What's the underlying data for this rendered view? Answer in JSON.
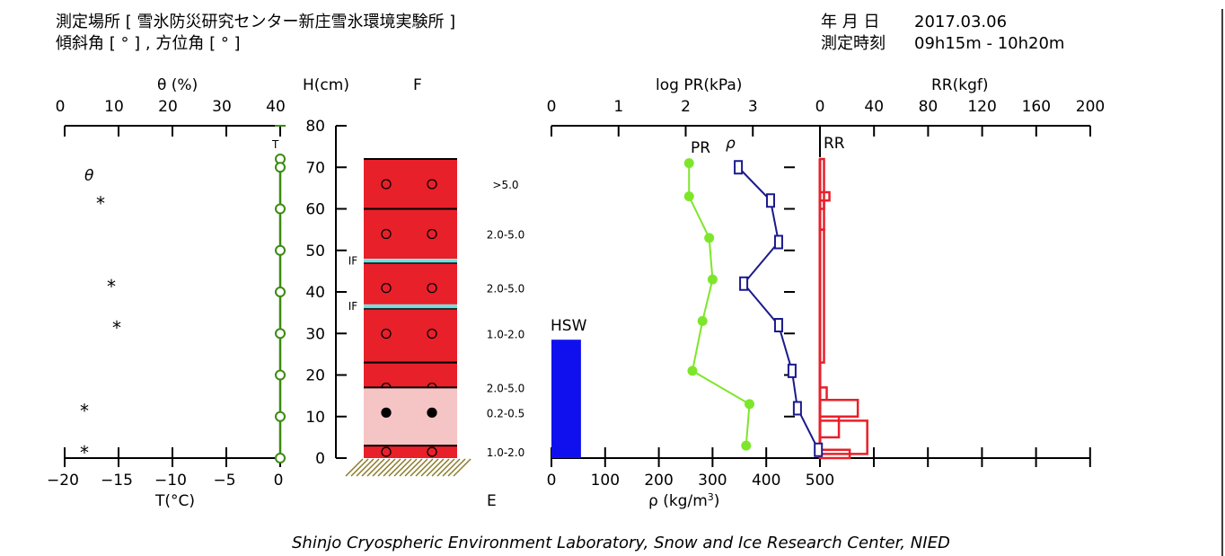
{
  "header": {
    "site_label": "測定場所 [ 雪氷防災研究センター新庄雪氷環境実験所 ]",
    "angle_label": "傾斜角 [ ° ] , 方位角 [ ° ]",
    "date_label": "年 月 日",
    "date_value": "2017.03.06",
    "time_label": "測定時刻",
    "time_value": "09h15m - 10h20m"
  },
  "footer": "Shinjo Cryospheric Environment Laboratory, Snow and Ice Research Center, NIED",
  "chart_data": {
    "type": "snow-pit-profile",
    "axes": {
      "theta": {
        "label": "θ (%)",
        "ticks": [
          "0",
          "10",
          "20",
          "30",
          "40"
        ],
        "range": [
          0,
          40
        ]
      },
      "temperature": {
        "label": "T(°C)",
        "ticks": [
          "−20",
          "−15",
          "−10",
          "−5",
          "0"
        ],
        "range": [
          -20,
          0
        ]
      },
      "height": {
        "label": "H(cm)",
        "ticks": [
          "0",
          "10",
          "20",
          "30",
          "40",
          "50",
          "60",
          "70",
          "80"
        ],
        "range": [
          0,
          80
        ]
      },
      "logPR": {
        "label": "log PR(kPa)",
        "ticks": [
          "0",
          "1",
          "2",
          "3"
        ],
        "range": [
          0,
          4
        ]
      },
      "RR": {
        "label": "RR(kgf)",
        "ticks": [
          "0",
          "40",
          "80",
          "120",
          "160",
          "200"
        ],
        "range": [
          0,
          200
        ]
      },
      "density": {
        "label": "ρ (kg/m",
        "label_sup": "3",
        "label_end": ")",
        "ticks": [
          "0",
          "100",
          "200",
          "300",
          "400",
          "500"
        ],
        "range": [
          0,
          500
        ]
      }
    },
    "labels": {
      "F": "F",
      "E": "E",
      "T": "T",
      "theta": "θ",
      "PR": "PR",
      "rho": "ρ",
      "RR": "RR",
      "HSW": "HSW",
      "IF": "IF"
    },
    "temperature": {
      "points": [
        {
          "h": 72,
          "T": 0
        },
        {
          "h": 70,
          "T": 0
        },
        {
          "h": 60,
          "T": 0
        },
        {
          "h": 50,
          "T": 0
        },
        {
          "h": 40,
          "T": 0
        },
        {
          "h": 30,
          "T": 0
        },
        {
          "h": 20,
          "T": 0
        },
        {
          "h": 10,
          "T": 0
        },
        {
          "h": 0,
          "T": 0
        }
      ],
      "color": "#3b8a10"
    },
    "theta_marks": [
      {
        "h": 62,
        "theta": 5,
        "symbol": "*"
      },
      {
        "h": 42,
        "theta": 7,
        "symbol": "*"
      },
      {
        "h": 32,
        "theta": 8,
        "symbol": "*"
      },
      {
        "h": 12,
        "theta": 2,
        "symbol": "*"
      },
      {
        "h": 2,
        "theta": 2,
        "symbol": "*"
      }
    ],
    "layers": [
      {
        "bottom": 60,
        "top": 72,
        "color": "#e8202a",
        "grain": "open",
        "hardness": ">5.0"
      },
      {
        "bottom": 48,
        "top": 60,
        "color": "#e8202a",
        "grain": "open",
        "hardness": "2.0-5.0"
      },
      {
        "bottom": 37,
        "top": 47,
        "color": "#e8202a",
        "grain": "open",
        "hardness": "2.0-5.0"
      },
      {
        "bottom": 23,
        "top": 36,
        "color": "#e8202a",
        "grain": "open",
        "hardness": "1.0-2.0"
      },
      {
        "bottom": 17,
        "top": 23,
        "color": "#e8202a",
        "grain": "open",
        "hardness": "2.0-5.0"
      },
      {
        "bottom": 3,
        "top": 17,
        "color": "#f5c4c4",
        "grain": "filled",
        "hardness": "0.2-0.5"
      },
      {
        "bottom": 0,
        "top": 3,
        "color": "#e8202a",
        "grain": "open",
        "hardness": "1.0-2.0"
      }
    ],
    "ice_films": [
      {
        "h": 47.5,
        "color": "#6fdede"
      },
      {
        "h": 36.5,
        "color": "#6fdede"
      }
    ],
    "PR": {
      "color": "#7ee62a",
      "points": [
        {
          "h": 71,
          "logPR": 2.05
        },
        {
          "h": 63,
          "logPR": 2.05
        },
        {
          "h": 53,
          "logPR": 2.35
        },
        {
          "h": 43,
          "logPR": 2.4
        },
        {
          "h": 33,
          "logPR": 2.25
        },
        {
          "h": 21,
          "logPR": 2.1
        },
        {
          "h": 13,
          "logPR": 2.95
        },
        {
          "h": 3,
          "logPR": 2.9
        }
      ]
    },
    "density": {
      "color": "#1a1a8c",
      "points": [
        {
          "h": 70,
          "rho": 348
        },
        {
          "h": 62,
          "rho": 408
        },
        {
          "h": 52,
          "rho": 423
        },
        {
          "h": 42,
          "rho": 358
        },
        {
          "h": 32,
          "rho": 423
        },
        {
          "h": 21,
          "rho": 448
        },
        {
          "h": 12,
          "rho": 458
        },
        {
          "h": 2,
          "rho": 497
        }
      ]
    },
    "RR": {
      "color": "#e8202a",
      "bars": [
        {
          "bottom": 60,
          "top": 72,
          "rr": 3
        },
        {
          "bottom": 62,
          "top": 64,
          "rr": 7
        },
        {
          "bottom": 55,
          "top": 62,
          "rr": 3
        },
        {
          "bottom": 23,
          "top": 55,
          "rr": 3
        },
        {
          "bottom": 14,
          "top": 17,
          "rr": 5
        },
        {
          "bottom": 10,
          "top": 14,
          "rr": 28
        },
        {
          "bottom": 5,
          "top": 10,
          "rr": 14
        },
        {
          "bottom": 1,
          "top": 9,
          "rr": 35
        },
        {
          "bottom": 0,
          "top": 2,
          "rr": 22
        }
      ]
    },
    "HSW": {
      "value_rho_axis": 55,
      "h_top": 28.5,
      "color": "#1010ee"
    },
    "grid": false
  }
}
